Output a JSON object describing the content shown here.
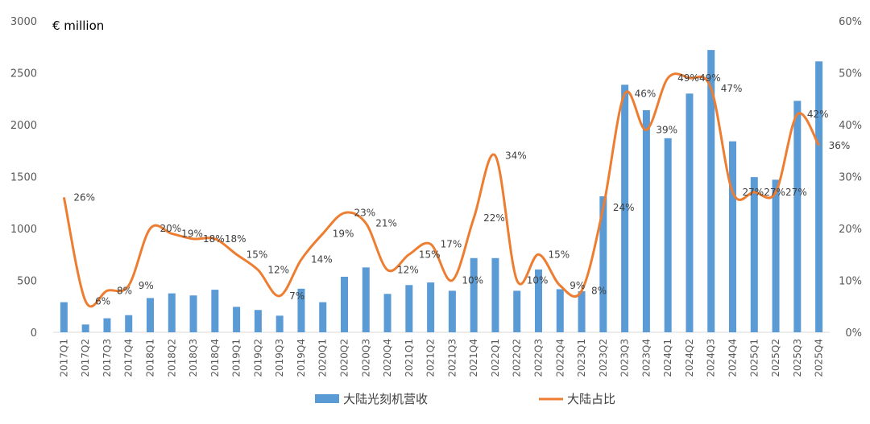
{
  "chart_data": {
    "type": "bar",
    "unit_label": "€ million",
    "categories": [
      "2017Q1",
      "2017Q2",
      "2017Q3",
      "2017Q4",
      "2018Q1",
      "2018Q2",
      "2018Q3",
      "2018Q4",
      "2019Q1",
      "2019Q2",
      "2019Q3",
      "2019Q4",
      "2020Q1",
      "2020Q2",
      "2020Q3",
      "2020Q4",
      "2021Q1",
      "2021Q2",
      "2021Q3",
      "2021Q4",
      "2022Q1",
      "2022Q2",
      "2022Q3",
      "2022Q4",
      "2023Q1",
      "2023Q2",
      "2023Q3",
      "2023Q4",
      "2024Q1",
      "2024Q2",
      "2024Q3",
      "2024Q4",
      "2025Q1",
      "2025Q2",
      "2025Q3",
      "2025Q4"
    ],
    "y_left": {
      "range": [
        0,
        3000
      ],
      "ticks": [
        "0",
        "500",
        "1000",
        "1500",
        "2000",
        "2500",
        "3000"
      ]
    },
    "y_right": {
      "range": [
        0,
        60
      ],
      "ticks": [
        "0%",
        "10%",
        "20%",
        "30%",
        "40%",
        "50%",
        "60%"
      ]
    },
    "grid": false,
    "legend_position": "bottom",
    "series": [
      {
        "name": "大陆光刻机营收",
        "type": "bar",
        "axis": "left",
        "color": "#5B9BD5",
        "values": [
          290,
          75,
          135,
          165,
          330,
          375,
          355,
          410,
          245,
          215,
          160,
          420,
          290,
          535,
          625,
          370,
          455,
          480,
          400,
          715,
          715,
          400,
          605,
          415,
          395,
          1310,
          2385,
          2140,
          1870,
          2300,
          2720,
          1840,
          1495,
          1470,
          2230,
          2610
        ]
      },
      {
        "name": "大陆占比",
        "type": "line",
        "axis": "right",
        "color": "#ED7D31",
        "values": [
          26,
          6,
          8,
          9,
          20,
          19,
          18,
          18,
          15,
          12,
          7,
          14,
          19,
          23,
          21,
          12,
          15,
          17,
          10,
          22,
          34,
          10,
          15,
          9,
          8,
          24,
          46,
          39,
          49,
          49,
          47,
          27,
          27,
          27,
          42,
          36
        ],
        "labels": [
          "26%",
          "6%",
          "8%",
          "9%",
          "20%",
          "19%",
          "18%",
          "18%",
          "15%",
          "12%",
          "7%",
          "14%",
          "19%",
          "23%",
          "21%",
          "12%",
          "15%",
          "17%",
          "10%",
          "22%",
          "34%",
          "10%",
          "15%",
          "9%",
          "8%",
          "24%",
          "46%",
          "39%",
          "49%",
          "49%",
          "47%",
          "27%",
          "27%",
          "27%",
          "42%",
          "36%"
        ]
      }
    ]
  }
}
